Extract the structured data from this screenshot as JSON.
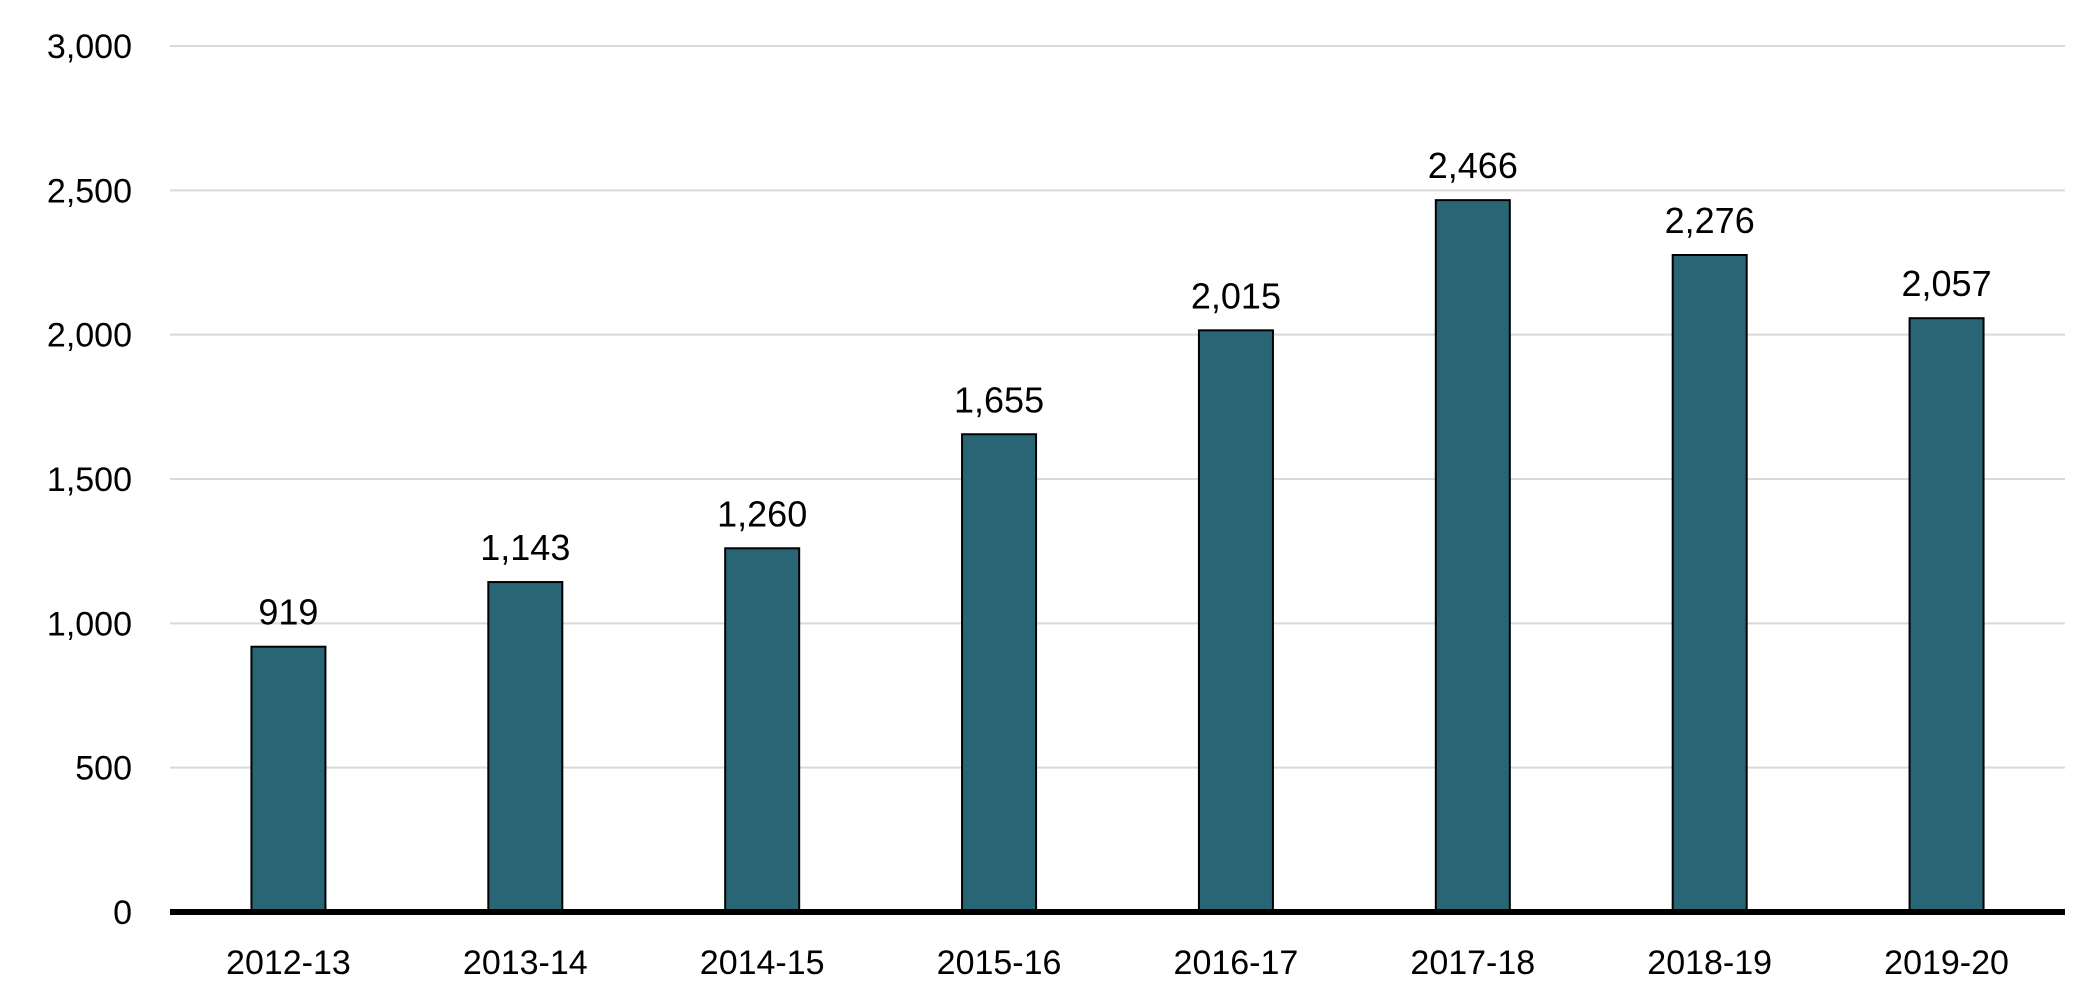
{
  "chart_data": {
    "type": "bar",
    "categories": [
      "2012-13",
      "2013-14",
      "2014-15",
      "2015-16",
      "2016-17",
      "2017-18",
      "2018-19",
      "2019-20"
    ],
    "values": [
      919,
      1143,
      1260,
      1655,
      2015,
      2466,
      2276,
      2057
    ],
    "data_labels": [
      "919",
      "1,143",
      "1,260",
      "1,655",
      "2,015",
      "2,466",
      "2,276",
      "2,057"
    ],
    "y_ticks": [
      0,
      500,
      1000,
      1500,
      2000,
      2500,
      3000
    ],
    "y_tick_labels": [
      "0",
      "500",
      "1,000",
      "1,500",
      "2,000",
      "2,500",
      "3,000"
    ],
    "ylim": [
      0,
      3000
    ],
    "grid": true,
    "legend": "none",
    "title": "",
    "xlabel": "",
    "ylabel": "",
    "colors": {
      "bar": "#286676",
      "grid": "#d9d9d9",
      "axis": "#000000"
    }
  }
}
